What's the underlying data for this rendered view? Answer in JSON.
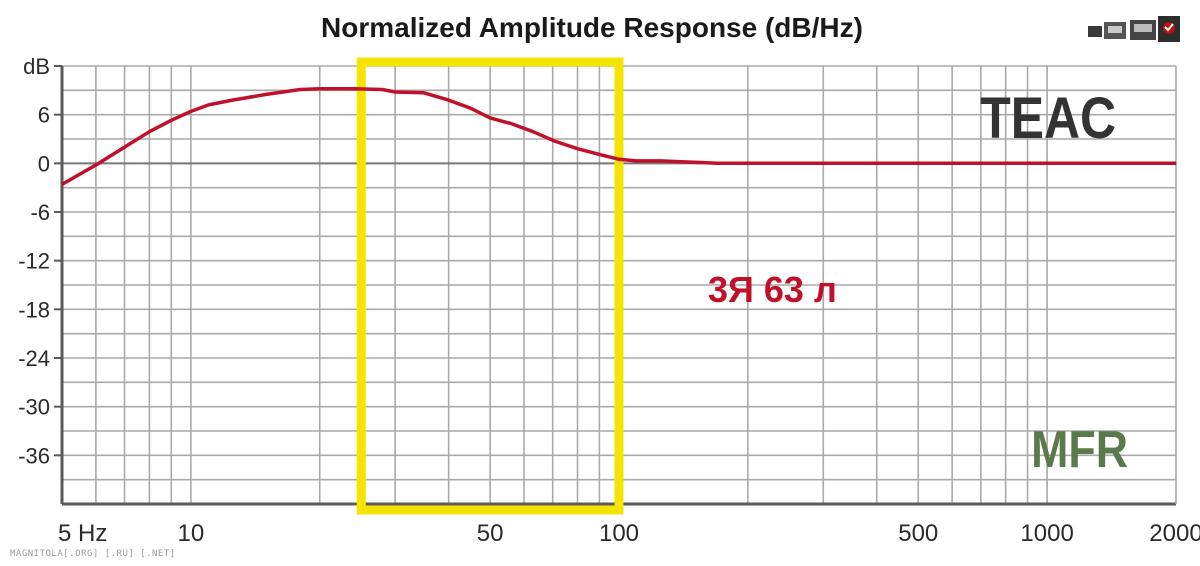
{
  "chart_data": {
    "type": "line",
    "title": "Normalized Amplitude Response (dB/Hz)",
    "xlabel": "",
    "ylabel": "dB",
    "xscale": "log",
    "xlim": [
      5,
      2000
    ],
    "ylim": [
      -42,
      12
    ],
    "grid": true,
    "x_tick_labels": [
      {
        "value": 5,
        "label": "5 Hz"
      },
      {
        "value": 10,
        "label": "10"
      },
      {
        "value": 50,
        "label": "50"
      },
      {
        "value": 100,
        "label": "100"
      },
      {
        "value": 500,
        "label": "500"
      },
      {
        "value": 1000,
        "label": "1000"
      },
      {
        "value": 2000,
        "label": "2000"
      }
    ],
    "y_ticks": [
      {
        "value": 12,
        "label": "dB"
      },
      {
        "value": 6,
        "label": "6"
      },
      {
        "value": 0,
        "label": "0"
      },
      {
        "value": -6,
        "label": "-6"
      },
      {
        "value": -12,
        "label": "-12"
      },
      {
        "value": -18,
        "label": "-18"
      },
      {
        "value": -24,
        "label": "-24"
      },
      {
        "value": -30,
        "label": "-30"
      },
      {
        "value": -36,
        "label": "-36"
      }
    ],
    "series": [
      {
        "color": "#c0102a",
        "points": [
          [
            5,
            -2.6
          ],
          [
            6,
            -0.2
          ],
          [
            7,
            2.0
          ],
          [
            8,
            3.9
          ],
          [
            9,
            5.3
          ],
          [
            10,
            6.4
          ],
          [
            11,
            7.2
          ],
          [
            12.5,
            7.8
          ],
          [
            15,
            8.5
          ],
          [
            18,
            9.1
          ],
          [
            20,
            9.2
          ],
          [
            24,
            9.2
          ],
          [
            28,
            9.1
          ],
          [
            30,
            8.8
          ],
          [
            35,
            8.7
          ],
          [
            40,
            7.8
          ],
          [
            45,
            6.8
          ],
          [
            50,
            5.6
          ],
          [
            56,
            4.9
          ],
          [
            63,
            3.9
          ],
          [
            71,
            2.7
          ],
          [
            80,
            1.8
          ],
          [
            90,
            1.1
          ],
          [
            100,
            0.5
          ],
          [
            110,
            0.3
          ],
          [
            125,
            0.3
          ],
          [
            140,
            0.2
          ],
          [
            155,
            0.1
          ],
          [
            170,
            0.0
          ],
          [
            200,
            0.0
          ],
          [
            500,
            0.0
          ],
          [
            1000,
            0.0
          ],
          [
            2000,
            0.0
          ]
        ]
      }
    ],
    "highlight_range": {
      "x": [
        25,
        100
      ],
      "color": "#f5e400"
    },
    "annotations": [
      {
        "text": "TEAC",
        "color": "#333333"
      },
      {
        "text": "3Я 63 л",
        "color": "#c0102a"
      },
      {
        "text": "MFR",
        "color": "#5a7a4c"
      }
    ]
  },
  "watermark": "MAGNITOLA[.ORG] [.RU] [.NET]",
  "logo_icon": "cassette-deck-logo"
}
